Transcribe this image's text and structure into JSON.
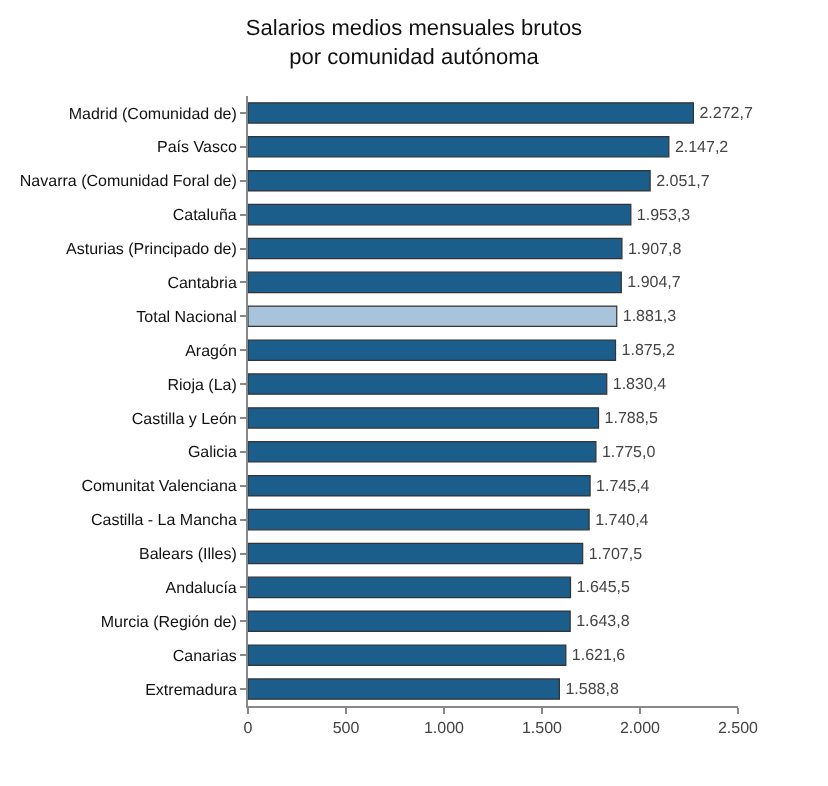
{
  "chart_data": {
    "type": "bar",
    "orientation": "horizontal",
    "title": "Salarios medios mensuales brutos\npor comunidad autónoma",
    "categories": [
      "Madrid (Comunidad de)",
      "País Vasco",
      "Navarra (Comunidad Foral de)",
      "Cataluña",
      "Asturias (Principado de)",
      "Cantabria",
      "Total Nacional",
      "Aragón",
      "Rioja (La)",
      "Castilla y León",
      "Galicia",
      "Comunitat Valenciana",
      "Castilla - La Mancha",
      "Balears (Illes)",
      "Andalucía",
      "Murcia (Región de)",
      "Canarias",
      "Extremadura"
    ],
    "values": [
      2272.7,
      2147.2,
      2051.7,
      1953.3,
      1907.8,
      1904.7,
      1881.3,
      1875.2,
      1830.4,
      1788.5,
      1775.0,
      1745.4,
      1740.4,
      1707.5,
      1645.5,
      1643.8,
      1621.6,
      1588.8
    ],
    "value_labels": [
      "2.272,7",
      "2.147,2",
      "2.051,7",
      "1.953,3",
      "1.907,8",
      "1.904,7",
      "1.881,3",
      "1.875,2",
      "1.830,4",
      "1.788,5",
      "1.775,0",
      "1.745,4",
      "1.740,4",
      "1.707,5",
      "1.645,5",
      "1.643,8",
      "1.621,6",
      "1.588,8"
    ],
    "colors": [
      "#1b5e8c",
      "#1b5e8c",
      "#1b5e8c",
      "#1b5e8c",
      "#1b5e8c",
      "#1b5e8c",
      "#a8c3da",
      "#1b5e8c",
      "#1b5e8c",
      "#1b5e8c",
      "#1b5e8c",
      "#1b5e8c",
      "#1b5e8c",
      "#1b5e8c",
      "#1b5e8c",
      "#1b5e8c",
      "#1b5e8c",
      "#1b5e8c"
    ],
    "xlim": [
      0,
      2500
    ],
    "xticks": [
      0,
      500,
      {
        "value": 1000,
        "label": "1.000"
      },
      {
        "value": 1500,
        "label": "1.500"
      },
      {
        "value": 2000,
        "label": "2.000"
      },
      {
        "value": 2500,
        "label": "2.500"
      }
    ],
    "grid": false,
    "legend": false
  }
}
